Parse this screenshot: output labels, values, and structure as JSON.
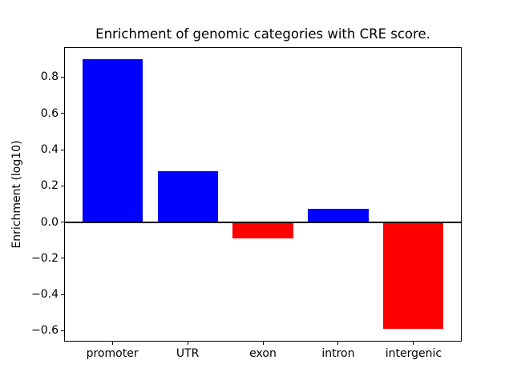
{
  "chart_data": {
    "type": "bar",
    "title": "Enrichment of genomic categories with CRE score.",
    "xlabel": "",
    "ylabel": "Enrichment (log10)",
    "categories": [
      "promoter",
      "UTR",
      "exon",
      "intron",
      "intergenic"
    ],
    "values": [
      0.9,
      0.28,
      -0.09,
      0.075,
      -0.59
    ],
    "yticks": [
      -0.6,
      -0.4,
      -0.2,
      0.0,
      0.2,
      0.4,
      0.6,
      0.8
    ],
    "ylim": [
      -0.66,
      0.965
    ],
    "bar_width_ratio": 0.8,
    "positive_color": "#0000ff",
    "negative_color": "#ff0000",
    "axis_color": "#000000",
    "background_color": "#ffffff",
    "grid": false,
    "legend": false,
    "zero_line": true
  }
}
